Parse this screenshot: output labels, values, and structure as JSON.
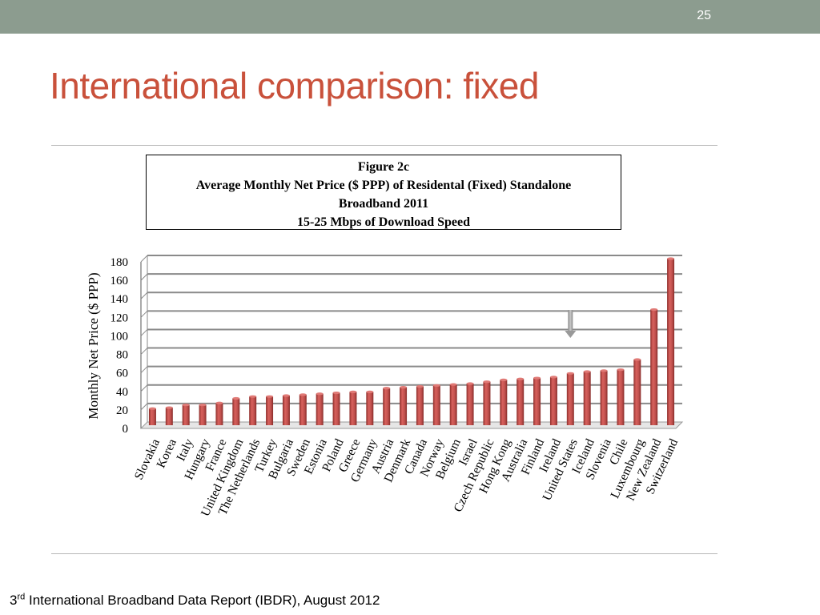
{
  "slide": {
    "page_number": "25",
    "title": "International comparison: fixed",
    "footer_ordinal": "3",
    "footer_sup": "rd",
    "footer_text": " International Broadband Data Report (IBDR), August 2012"
  },
  "colors": {
    "title": "#c9513b",
    "topbar": "#8c9c8f",
    "bar_fill": "#c0504d",
    "arrow": "#a6a6a6"
  },
  "figure": {
    "label": "Figure 2c",
    "line1": "Average Monthly Net Price ($ PPP) of Residental (Fixed) Standalone",
    "line2": "Broadband 2011",
    "line3": "15-25 Mbps of Download Speed"
  },
  "chart_data": {
    "type": "bar",
    "ylabel": "Monthly Net Price ($ PPP)",
    "ylim": [
      0,
      180
    ],
    "yticks": [
      0,
      20,
      40,
      60,
      80,
      100,
      120,
      140,
      160,
      180
    ],
    "grid": true,
    "style": "3d",
    "categories": [
      "Slovakia",
      "Korea",
      "Italy",
      "Hungary",
      "France",
      "United Kingdom",
      "The Netherlands",
      "Turkey",
      "Bulgaria",
      "Sweden",
      "Estonia",
      "Poland",
      "Greece",
      "Germany",
      "Austria",
      "Denmark",
      "Canada",
      "Norway",
      "Belgium",
      "Israel",
      "Czech Republic",
      "Hong Kong",
      "Australia",
      "Finland",
      "Ireland",
      "United States",
      "Iceland",
      "Slovenia",
      "Chile",
      "Luxembourg",
      "New Zealand",
      "Switzerland"
    ],
    "values": [
      18,
      19,
      22,
      22,
      24,
      29,
      31,
      31,
      32,
      33,
      34,
      35,
      36,
      36,
      40,
      41,
      42,
      43,
      44,
      45,
      47,
      49,
      50,
      51,
      52,
      56,
      58,
      59,
      60,
      71,
      125,
      180
    ],
    "annotation": {
      "type": "arrow",
      "points_to": "United States"
    }
  }
}
